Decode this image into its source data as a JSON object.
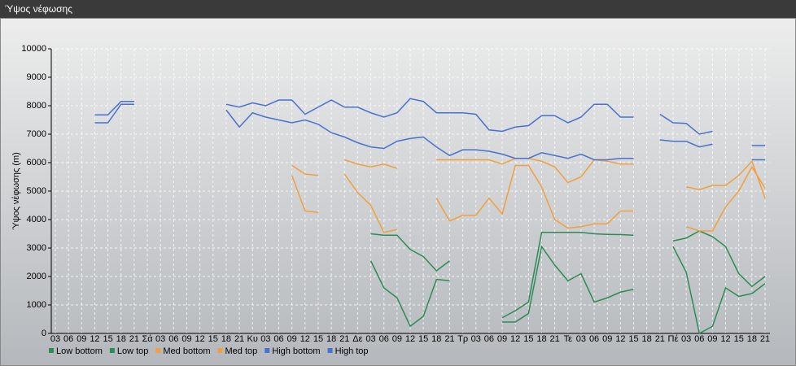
{
  "window_title": "Ύψος νέφωσης",
  "chart_data": {
    "type": "line",
    "y_label": "Ύψος νέφωσης (m)",
    "categories": [
      "03",
      "06",
      "09",
      "12",
      "15",
      "18",
      "21",
      "Σά",
      "03",
      "06",
      "09",
      "12",
      "15",
      "18",
      "21",
      "Κυ",
      "03",
      "06",
      "09",
      "12",
      "15",
      "18",
      "21",
      "Δε",
      "03",
      "06",
      "09",
      "12",
      "15",
      "18",
      "21",
      "Τρ",
      "03",
      "06",
      "09",
      "12",
      "15",
      "18",
      "21",
      "Τε",
      "03",
      "06",
      "09",
      "12",
      "15",
      "18",
      "21",
      "Πέ",
      "03",
      "06",
      "09",
      "12",
      "15",
      "18",
      "21"
    ],
    "ylim": [
      0,
      10000
    ],
    "yticks": [
      0,
      1000,
      2000,
      3000,
      4000,
      5000,
      6000,
      7000,
      8000,
      9000,
      10000
    ],
    "grid": true,
    "series": [
      {
        "name": "Low bottom",
        "color": "#2e8b57",
        "values": [
          null,
          null,
          null,
          null,
          null,
          null,
          null,
          null,
          null,
          null,
          null,
          null,
          null,
          null,
          null,
          null,
          null,
          null,
          null,
          null,
          null,
          null,
          null,
          null,
          2550,
          1600,
          1250,
          250,
          600,
          1900,
          1850,
          null,
          null,
          null,
          400,
          400,
          700,
          3050,
          2400,
          1850,
          2100,
          1100,
          1250,
          1450,
          1550,
          null,
          null,
          3050,
          2150,
          0,
          250,
          1600,
          1300,
          1400,
          1750
        ]
      },
      {
        "name": "Low top",
        "color": "#2e8b57",
        "values": [
          null,
          null,
          null,
          null,
          null,
          null,
          null,
          null,
          null,
          null,
          null,
          null,
          null,
          null,
          null,
          null,
          null,
          null,
          null,
          null,
          null,
          null,
          null,
          null,
          3500,
          3450,
          3450,
          2950,
          2700,
          2200,
          2550,
          null,
          null,
          null,
          550,
          800,
          1100,
          3550,
          3550,
          3550,
          3550,
          3500,
          3480,
          3470,
          3450,
          null,
          null,
          3250,
          3350,
          3600,
          3400,
          3050,
          2100,
          1650,
          2000
        ]
      },
      {
        "name": "Med bottom",
        "color": "#f0a040",
        "values": [
          null,
          null,
          null,
          null,
          null,
          null,
          null,
          null,
          null,
          null,
          null,
          null,
          null,
          null,
          null,
          null,
          null,
          null,
          5550,
          4300,
          4250,
          null,
          5600,
          4950,
          4500,
          3550,
          3650,
          null,
          null,
          4750,
          3950,
          4150,
          4150,
          4750,
          4200,
          5900,
          5900,
          5150,
          4000,
          3700,
          3750,
          3850,
          3850,
          4300,
          4300,
          null,
          null,
          null,
          3750,
          3600,
          3600,
          4450,
          5000,
          5850,
          5100
        ]
      },
      {
        "name": "Med top",
        "color": "#f0a040",
        "values": [
          null,
          null,
          null,
          null,
          null,
          null,
          null,
          null,
          null,
          null,
          null,
          null,
          null,
          null,
          null,
          null,
          null,
          null,
          5900,
          5600,
          5550,
          null,
          6100,
          5950,
          5850,
          5950,
          5800,
          null,
          null,
          6100,
          6100,
          6100,
          6100,
          6100,
          5950,
          6150,
          6150,
          6050,
          5850,
          5300,
          5500,
          6100,
          6050,
          5950,
          5950,
          null,
          null,
          null,
          5150,
          5050,
          5200,
          5200,
          5550,
          6050,
          4750
        ]
      },
      {
        "name": "High bottom",
        "color": "#4a70d0",
        "values": [
          null,
          null,
          null,
          7400,
          7400,
          8050,
          8050,
          null,
          null,
          null,
          null,
          null,
          null,
          7850,
          7250,
          7750,
          7600,
          7500,
          7400,
          7500,
          7350,
          7050,
          6900,
          6700,
          6550,
          6500,
          6750,
          6850,
          6900,
          6550,
          6250,
          6450,
          6450,
          6400,
          6300,
          6150,
          6150,
          6350,
          6250,
          6150,
          6300,
          6100,
          6100,
          6150,
          6150,
          null,
          6800,
          6750,
          6750,
          6550,
          6650,
          null,
          null,
          6100,
          6100
        ]
      },
      {
        "name": "High top",
        "color": "#4a70d0",
        "values": [
          null,
          null,
          null,
          7680,
          7680,
          8150,
          8150,
          null,
          null,
          null,
          null,
          null,
          null,
          8050,
          7950,
          8100,
          8000,
          8200,
          8200,
          7700,
          7950,
          8200,
          7950,
          7950,
          7750,
          7600,
          7750,
          8250,
          8150,
          7750,
          7750,
          7750,
          7700,
          7150,
          7100,
          7250,
          7300,
          7650,
          7650,
          7400,
          7600,
          8050,
          8050,
          7600,
          7600,
          null,
          7700,
          7400,
          7380,
          7000,
          7100,
          null,
          null,
          6600,
          6600
        ]
      }
    ]
  }
}
